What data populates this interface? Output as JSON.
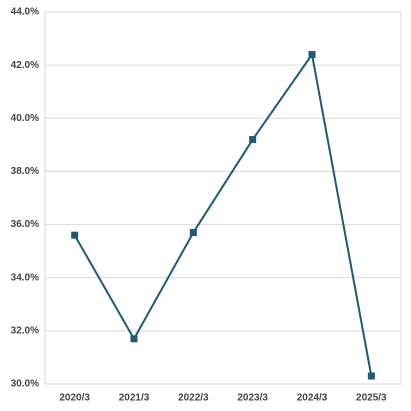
{
  "chart_data": {
    "type": "line",
    "categories": [
      "2020/3",
      "2021/3",
      "2022/3",
      "2023/3",
      "2024/3",
      "2025/3"
    ],
    "values": [
      35.6,
      31.7,
      35.7,
      39.2,
      42.4,
      30.3
    ],
    "color": "#1f5a78",
    "ylim": [
      30,
      44
    ],
    "yticks": [
      {
        "value": 30,
        "label": "30.0%"
      },
      {
        "value": 32,
        "label": "32.0%"
      },
      {
        "value": 34,
        "label": "34.0%"
      },
      {
        "value": 36,
        "label": "36.0%"
      },
      {
        "value": 38,
        "label": "38.0%"
      },
      {
        "value": 40,
        "label": "40.0%"
      },
      {
        "value": 42,
        "label": "42.0%"
      },
      {
        "value": 44,
        "label": "44.0%"
      }
    ],
    "grid": true
  }
}
